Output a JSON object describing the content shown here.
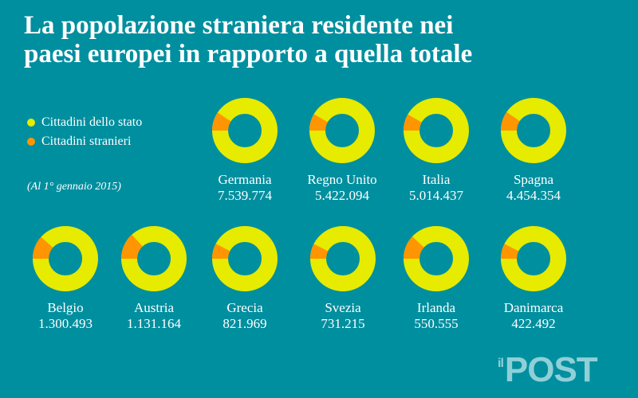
{
  "title_line1": "La popolazione straniera residente nei",
  "title_line2": "paesi europei in rapporto a quella totale",
  "note": "(Al 1° gennaio 2015)",
  "logo_text": "IL POST",
  "colors": {
    "background": "#008f9f",
    "citizens": "#e6eb00",
    "foreigners": "#ff9500"
  },
  "chart_data": {
    "type": "pie",
    "variant": "donut-small-multiples",
    "legend": [
      "Cittadini dello stato",
      "Cittadini stranieri"
    ],
    "legend_position": "top-left",
    "countries": [
      {
        "name": "Germania",
        "foreign_population": "7.539.774",
        "foreign_share_pct": 9.3
      },
      {
        "name": "Regno Unito",
        "foreign_population": "5.422.094",
        "foreign_share_pct": 8.4
      },
      {
        "name": "Italia",
        "foreign_population": "5.014.437",
        "foreign_share_pct": 8.2
      },
      {
        "name": "Spagna",
        "foreign_population": "4.454.354",
        "foreign_share_pct": 9.6
      },
      {
        "name": "Belgio",
        "foreign_population": "1.300.493",
        "foreign_share_pct": 11.6
      },
      {
        "name": "Austria",
        "foreign_population": "1.131.164",
        "foreign_share_pct": 13.2
      },
      {
        "name": "Grecia",
        "foreign_population": "821.969",
        "foreign_share_pct": 7.6
      },
      {
        "name": "Svezia",
        "foreign_population": "731.215",
        "foreign_share_pct": 7.5
      },
      {
        "name": "Irlanda",
        "foreign_population": "550.555",
        "foreign_share_pct": 11.9
      },
      {
        "name": "Danimarca",
        "foreign_population": "422.492",
        "foreign_share_pct": 7.5
      }
    ]
  }
}
